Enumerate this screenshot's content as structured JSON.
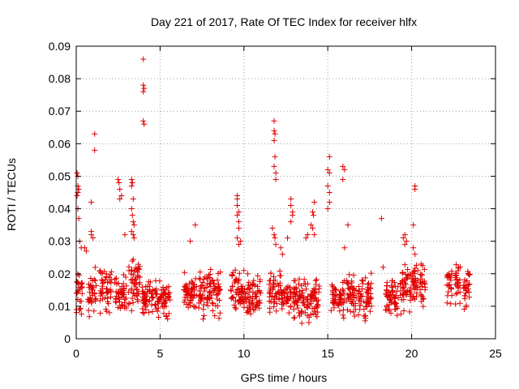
{
  "chart_data": {
    "type": "scatter",
    "title": "Day 221 of 2017, Rate Of TEC Index for receiver hlfx",
    "xlabel": "GPS time / hours",
    "ylabel": "ROTI / TECUs",
    "xlim": [
      0,
      25
    ],
    "ylim": [
      0,
      0.09
    ],
    "x_ticks": [
      0,
      5,
      10,
      15,
      20,
      25
    ],
    "x_tick_labels": [
      "0",
      "5",
      "10",
      "15",
      "20",
      "25"
    ],
    "y_ticks": [
      0,
      0.01,
      0.02,
      0.03,
      0.04,
      0.05,
      0.06,
      0.07,
      0.08,
      0.09
    ],
    "y_tick_labels": [
      "0",
      "0.01",
      "0.02",
      "0.03",
      "0.04",
      "0.05",
      "0.06",
      "0.07",
      "0.08",
      "0.09"
    ],
    "grid": true,
    "marker": "+",
    "color": "#e00000",
    "series": [
      {
        "name": "ROTI",
        "dense_bands": [
          {
            "x": [
              0.0,
              0.4
            ],
            "y": [
              0.004,
              0.026
            ]
          },
          {
            "x": [
              0.7,
              1.2
            ],
            "y": [
              0.005,
              0.023
            ]
          },
          {
            "x": [
              1.4,
              2.1
            ],
            "y": [
              0.005,
              0.025
            ]
          },
          {
            "x": [
              2.3,
              3.0
            ],
            "y": [
              0.006,
              0.022
            ]
          },
          {
            "x": [
              3.1,
              3.8
            ],
            "y": [
              0.004,
              0.03
            ]
          },
          {
            "x": [
              3.9,
              4.6
            ],
            "y": [
              0.006,
              0.02
            ]
          },
          {
            "x": [
              4.7,
              5.6
            ],
            "y": [
              0.005,
              0.019
            ]
          },
          {
            "x": [
              6.4,
              7.2
            ],
            "y": [
              0.006,
              0.022
            ]
          },
          {
            "x": [
              7.3,
              8.6
            ],
            "y": [
              0.005,
              0.023
            ]
          },
          {
            "x": [
              9.2,
              10.0
            ],
            "y": [
              0.004,
              0.025
            ]
          },
          {
            "x": [
              10.0,
              11.0
            ],
            "y": [
              0.005,
              0.022
            ]
          },
          {
            "x": [
              11.5,
              12.2
            ],
            "y": [
              0.006,
              0.024
            ]
          },
          {
            "x": [
              12.2,
              12.8
            ],
            "y": [
              0.007,
              0.018
            ]
          },
          {
            "x": [
              12.9,
              14.5
            ],
            "y": [
              0.004,
              0.021
            ]
          },
          {
            "x": [
              15.2,
              16.0
            ],
            "y": [
              0.005,
              0.019
            ]
          },
          {
            "x": [
              16.1,
              16.7
            ],
            "y": [
              0.004,
              0.022
            ]
          },
          {
            "x": [
              16.8,
              17.6
            ],
            "y": [
              0.003,
              0.024
            ]
          },
          {
            "x": [
              18.4,
              19.2
            ],
            "y": [
              0.006,
              0.021
            ]
          },
          {
            "x": [
              19.3,
              20.4
            ],
            "y": [
              0.004,
              0.027
            ]
          },
          {
            "x": [
              20.5,
              20.8
            ],
            "y": [
              0.008,
              0.025
            ]
          },
          {
            "x": [
              22.1,
              22.4
            ],
            "y": [
              0.007,
              0.026
            ]
          },
          {
            "x": [
              22.6,
              22.9
            ],
            "y": [
              0.006,
              0.029
            ]
          },
          {
            "x": [
              23.1,
              23.5
            ],
            "y": [
              0.006,
              0.028
            ]
          }
        ],
        "points": [
          [
            0.05,
            0.051
          ],
          [
            0.1,
            0.05
          ],
          [
            0.1,
            0.047
          ],
          [
            0.15,
            0.046
          ],
          [
            0.1,
            0.045
          ],
          [
            0.05,
            0.044
          ],
          [
            0.1,
            0.04
          ],
          [
            0.15,
            0.037
          ],
          [
            0.2,
            0.03
          ],
          [
            0.3,
            0.028
          ],
          [
            0.5,
            0.028
          ],
          [
            0.6,
            0.027
          ],
          [
            0.9,
            0.042
          ],
          [
            0.9,
            0.033
          ],
          [
            0.9,
            0.032
          ],
          [
            1.1,
            0.063
          ],
          [
            1.1,
            0.058
          ],
          [
            1.0,
            0.031
          ],
          [
            2.5,
            0.049
          ],
          [
            2.55,
            0.048
          ],
          [
            2.6,
            0.046
          ],
          [
            2.7,
            0.044
          ],
          [
            2.6,
            0.043
          ],
          [
            2.9,
            0.032
          ],
          [
            3.3,
            0.049
          ],
          [
            3.35,
            0.048
          ],
          [
            3.3,
            0.047
          ],
          [
            3.4,
            0.043
          ],
          [
            3.3,
            0.04
          ],
          [
            3.35,
            0.038
          ],
          [
            3.4,
            0.036
          ],
          [
            3.45,
            0.035
          ],
          [
            3.3,
            0.033
          ],
          [
            3.4,
            0.032
          ],
          [
            3.45,
            0.031
          ],
          [
            4.0,
            0.086
          ],
          [
            4.0,
            0.078
          ],
          [
            4.05,
            0.077
          ],
          [
            4.0,
            0.076
          ],
          [
            4.0,
            0.067
          ],
          [
            4.05,
            0.066
          ],
          [
            6.8,
            0.03
          ],
          [
            7.1,
            0.035
          ],
          [
            9.6,
            0.044
          ],
          [
            9.6,
            0.043
          ],
          [
            9.6,
            0.041
          ],
          [
            9.7,
            0.039
          ],
          [
            9.6,
            0.038
          ],
          [
            9.7,
            0.036
          ],
          [
            9.7,
            0.034
          ],
          [
            9.6,
            0.031
          ],
          [
            9.8,
            0.03
          ],
          [
            9.7,
            0.029
          ],
          [
            11.8,
            0.067
          ],
          [
            11.8,
            0.064
          ],
          [
            11.85,
            0.063
          ],
          [
            11.8,
            0.061
          ],
          [
            11.85,
            0.056
          ],
          [
            11.8,
            0.053
          ],
          [
            11.9,
            0.051
          ],
          [
            11.9,
            0.049
          ],
          [
            11.7,
            0.034
          ],
          [
            11.8,
            0.032
          ],
          [
            11.85,
            0.031
          ],
          [
            11.9,
            0.029
          ],
          [
            12.2,
            0.028
          ],
          [
            12.3,
            0.026
          ],
          [
            12.8,
            0.043
          ],
          [
            12.8,
            0.041
          ],
          [
            12.9,
            0.039
          ],
          [
            12.9,
            0.038
          ],
          [
            12.8,
            0.036
          ],
          [
            12.6,
            0.031
          ],
          [
            13.7,
            0.031
          ],
          [
            13.8,
            0.032
          ],
          [
            14.2,
            0.042
          ],
          [
            14.1,
            0.039
          ],
          [
            14.15,
            0.038
          ],
          [
            14.0,
            0.035
          ],
          [
            14.1,
            0.034
          ],
          [
            14.2,
            0.032
          ],
          [
            15.1,
            0.056
          ],
          [
            15.0,
            0.052
          ],
          [
            15.1,
            0.051
          ],
          [
            15.0,
            0.047
          ],
          [
            15.1,
            0.045
          ],
          [
            15.1,
            0.042
          ],
          [
            15.0,
            0.04
          ],
          [
            15.9,
            0.053
          ],
          [
            16.0,
            0.052
          ],
          [
            15.9,
            0.049
          ],
          [
            16.2,
            0.035
          ],
          [
            16.0,
            0.028
          ],
          [
            18.2,
            0.037
          ],
          [
            18.3,
            0.022
          ],
          [
            19.6,
            0.032
          ],
          [
            19.5,
            0.031
          ],
          [
            19.7,
            0.03
          ],
          [
            19.6,
            0.029
          ],
          [
            20.2,
            0.047
          ],
          [
            20.2,
            0.046
          ],
          [
            20.1,
            0.035
          ],
          [
            20.1,
            0.028
          ],
          [
            20.2,
            0.026
          ]
        ]
      }
    ]
  }
}
